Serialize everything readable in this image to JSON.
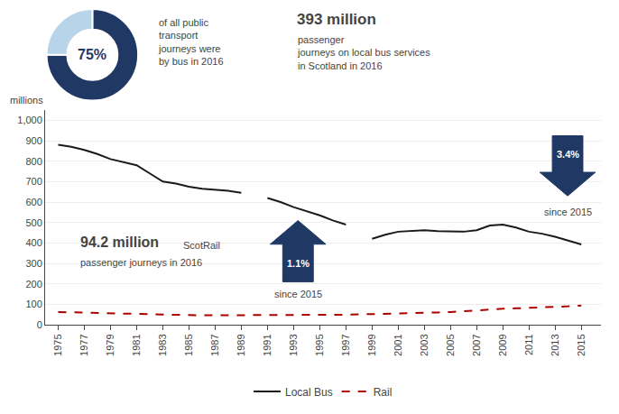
{
  "chart_data": [
    {
      "type": "line",
      "x": [
        1975,
        1976,
        1977,
        1978,
        1979,
        1980,
        1981,
        1982,
        1983,
        1984,
        1985,
        1986,
        1987,
        1988,
        1989,
        1991,
        1992,
        1993,
        1994,
        1995,
        1996,
        1997,
        1999,
        2000,
        2001,
        2002,
        2003,
        2004,
        2005,
        2006,
        2007,
        2008,
        2009,
        2010,
        2011,
        2012,
        2013,
        2014,
        2015
      ],
      "series": [
        {
          "name": "Local Bus",
          "color": "#1a1a1a",
          "line_style": "solid",
          "x": [
            1975,
            1976,
            1977,
            1978,
            1979,
            1980,
            1981,
            1982,
            1983,
            1984,
            1985,
            1986,
            1987,
            1988,
            1989,
            null,
            1991,
            1992,
            1993,
            1994,
            1995,
            1996,
            1997,
            null,
            1999,
            2000,
            2001,
            2002,
            2003,
            2004,
            2005,
            2006,
            2007,
            2008,
            2009,
            2010,
            2011,
            2012,
            2013,
            2014,
            2015
          ],
          "values": [
            880,
            870,
            855,
            835,
            810,
            795,
            780,
            740,
            700,
            690,
            675,
            665,
            660,
            655,
            645,
            null,
            620,
            600,
            575,
            555,
            535,
            510,
            490,
            null,
            420,
            440,
            455,
            460,
            462,
            458,
            455,
            455,
            462,
            485,
            490,
            475,
            455,
            445,
            430,
            410,
            393
          ]
        },
        {
          "name": "Rail",
          "color": "#aa0000",
          "line_style": "dashed",
          "values": [
            62,
            61,
            60,
            58,
            57,
            55,
            53,
            51,
            49,
            48,
            47,
            46,
            46,
            46,
            46,
            47,
            47,
            47,
            47,
            48,
            48,
            49,
            52,
            53,
            55,
            57,
            58,
            60,
            62,
            66,
            72,
            76,
            78,
            80,
            82,
            84,
            86,
            90,
            94
          ]
        }
      ],
      "ylabel": "millions",
      "xlim": [
        1974,
        2016.5
      ],
      "xticks": [
        1975,
        1977,
        1979,
        1981,
        1983,
        1985,
        1987,
        1989,
        1991,
        1993,
        1995,
        1997,
        1999,
        2001,
        2003,
        2005,
        2007,
        2009,
        2011,
        2013,
        2015
      ],
      "ylim": [
        0,
        1050
      ],
      "yticks": [
        0,
        100,
        200,
        300,
        400,
        500,
        600,
        700,
        800,
        900,
        {
          "value": 1000,
          "label": "1,000"
        }
      ],
      "grid": "y",
      "legend": "bottom",
      "annotations": [
        {
          "text": "of all public\ntransport\njourneys were\nby bus in 2016"
        },
        {
          "text": "393 million"
        },
        {
          "text": "passenger\njourneys on local bus services\nin Scotland in 2016"
        },
        {
          "text": "3.4%",
          "color": "#1f3864"
        },
        {
          "text": "since 2015"
        },
        {
          "text": "1.1%",
          "color": "#1f3864"
        },
        {
          "text": "since 2015"
        },
        {
          "text": "94.2 million"
        },
        {
          "text": "ScotRail"
        },
        {
          "text": "passenger journeys in 2016"
        }
      ]
    },
    {
      "type": "pie",
      "values": [
        75,
        25
      ],
      "colors": [
        "#1f3864",
        "#b8d4e8"
      ],
      "annotations": [
        {
          "text": "75%"
        }
      ]
    }
  ]
}
